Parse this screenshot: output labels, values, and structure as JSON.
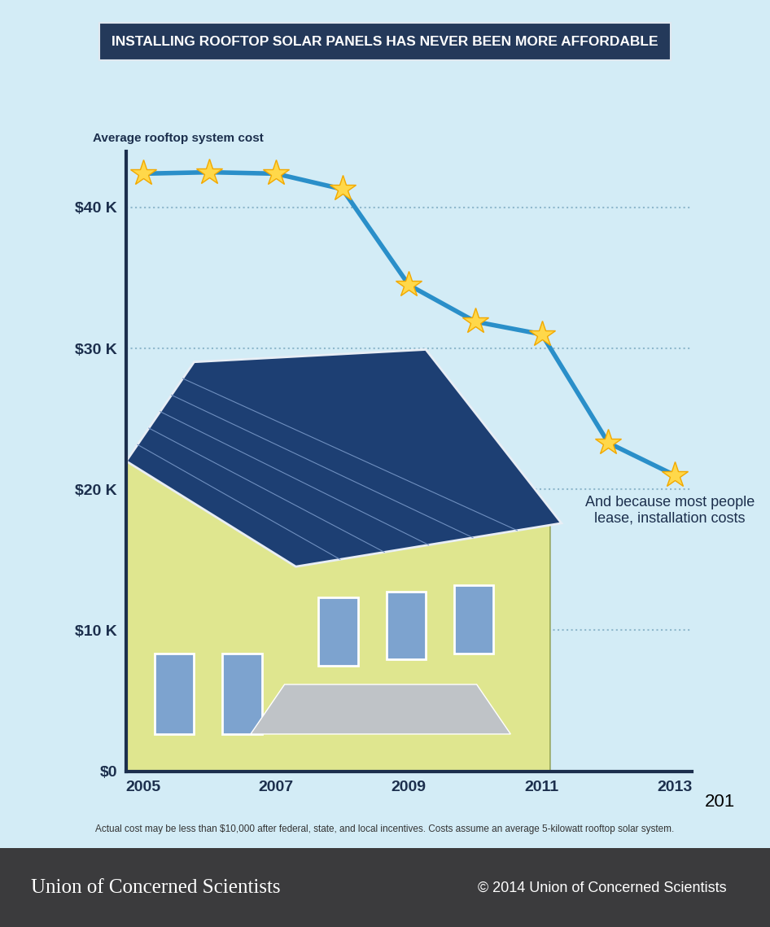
{
  "chart_data": {
    "type": "line",
    "title": "INSTALLING ROOFTOP SOLAR PANELS HAS NEVER BEEN MORE AFFORDABLE",
    "y_label": "Average rooftop system cost",
    "x": [
      2005,
      2006,
      2007,
      2008,
      2009,
      2010,
      2011,
      2012,
      2013
    ],
    "values": [
      42.4,
      42.5,
      42.4,
      41.3,
      34.5,
      31.9,
      31.0,
      23.3,
      21.0
    ],
    "color": "#2a8fc9",
    "marker": "star",
    "xlim": [
      2004.75,
      2013.25
    ],
    "xticks": [
      2005,
      2007,
      2009,
      2011,
      2013
    ],
    "ylim": [
      0,
      44
    ],
    "yticks": [
      {
        "value": 0,
        "label": "$0"
      },
      {
        "value": 10,
        "label": "$10 K"
      },
      {
        "value": 20,
        "label": "$20 K"
      },
      {
        "value": 30,
        "label": "$30 K"
      },
      {
        "value": 40,
        "label": "$40 K"
      }
    ],
    "grid": true,
    "annotations": [
      "And because most people lease, installation costs",
      "201"
    ],
    "footnote": "Actual cost may be less than $10,000 after federal, state, and local incentives. Costs assume an average 5-kilowatt rooftop solar system.",
    "source": "Union of Concerned Scientists",
    "copyright": "© 2014 Union of Concerned Scientists"
  }
}
